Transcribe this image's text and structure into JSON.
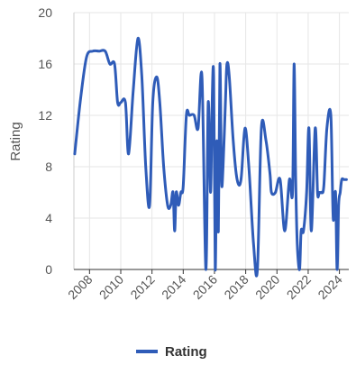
{
  "chart_data": {
    "type": "line",
    "title": "",
    "xlabel": "",
    "ylabel": "Rating",
    "xlim": [
      2007.0,
      2024.6
    ],
    "ylim": [
      0,
      20
    ],
    "yticks": [
      0,
      4,
      8,
      12,
      16,
      20
    ],
    "xticks": [
      "2008",
      "2010",
      "2012",
      "2014",
      "2016",
      "2018",
      "2020",
      "2022",
      "2024"
    ],
    "grid": true,
    "legend_position": "bottom",
    "series": [
      {
        "name": "Rating",
        "color": "#2f5cb8",
        "x": [
          2007.05,
          2007.4,
          2007.8,
          2008.2,
          2008.6,
          2009.0,
          2009.3,
          2009.6,
          2009.8,
          2010.0,
          2010.3,
          2010.5,
          2010.8,
          2011.1,
          2011.35,
          2011.6,
          2011.85,
          2012.05,
          2012.3,
          2012.5,
          2012.75,
          2013.0,
          2013.2,
          2013.35,
          2013.45,
          2013.55,
          2013.7,
          2013.85,
          2014.0,
          2014.2,
          2014.4,
          2014.7,
          2014.95,
          2015.2,
          2015.45,
          2015.6,
          2015.75,
          2015.85,
          2015.95,
          2016.05,
          2016.15,
          2016.25,
          2016.35,
          2016.45,
          2016.55,
          2016.7,
          2016.8,
          2016.95,
          2017.2,
          2017.45,
          2017.7,
          2017.95,
          2018.2,
          2018.5,
          2018.75,
          2019.0,
          2019.3,
          2019.55,
          2019.65,
          2019.9,
          2020.2,
          2020.5,
          2020.8,
          2021.0,
          2021.1,
          2021.2,
          2021.3,
          2021.45,
          2021.55,
          2021.7,
          2021.9,
          2022.05,
          2022.2,
          2022.45,
          2022.6,
          2022.7,
          2022.75,
          2022.85,
          2023.0,
          2023.2,
          2023.45,
          2023.6,
          2023.75,
          2023.85,
          2023.95,
          2024.05,
          2024.15,
          2024.3,
          2024.45
        ],
        "values": [
          9,
          13,
          16.5,
          17,
          17,
          17,
          16,
          16,
          13,
          13,
          13,
          9,
          14,
          18,
          15,
          8,
          5,
          13,
          15,
          13,
          8,
          5,
          5,
          6,
          3,
          6,
          5,
          6,
          6.5,
          12,
          12,
          12,
          11,
          15,
          0,
          13,
          6,
          13,
          15,
          0,
          10,
          3,
          16,
          7,
          8,
          13,
          16,
          15,
          10,
          7,
          7,
          11,
          8,
          2,
          0,
          11,
          10,
          7.5,
          6,
          6,
          7,
          3,
          7,
          6,
          16,
          7,
          2,
          0,
          3,
          3,
          6,
          11,
          3,
          11,
          6,
          6,
          6,
          6,
          6.5,
          11,
          12,
          4,
          6,
          0,
          5,
          6,
          7,
          7,
          7
        ]
      }
    ]
  }
}
